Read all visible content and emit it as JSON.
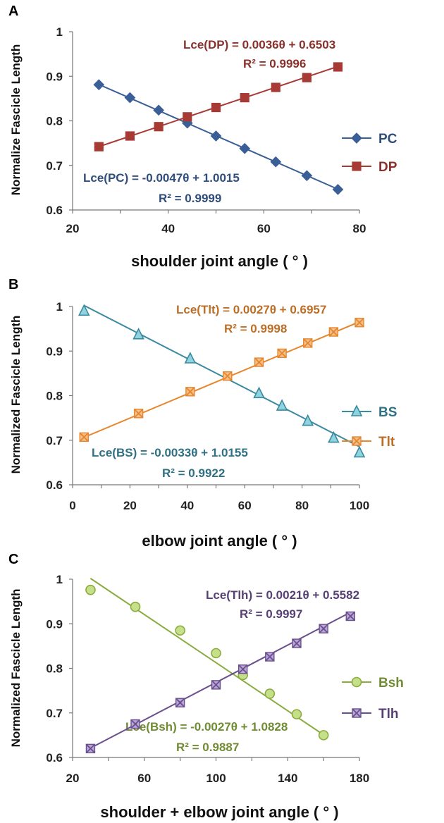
{
  "chart_data": [
    {
      "type": "scatter",
      "panel": "A",
      "xlabel": "shoulder joint angle ( ° )",
      "ylabel": "Normalize Fascicle Length",
      "xlim": [
        20,
        80
      ],
      "ylim": [
        0.6,
        1.0
      ],
      "xticks": [
        "20",
        "40",
        "60",
        "80"
      ],
      "yticks": [
        "0.6",
        "0.7",
        "0.8",
        "0.9",
        "1"
      ],
      "series": [
        {
          "name": "PC",
          "color": "#3a5f96",
          "marker": "diamond",
          "x": [
            25.5,
            32,
            38,
            44,
            50,
            56,
            62.5,
            69,
            75.5
          ],
          "y": [
            0.881,
            0.852,
            0.824,
            0.795,
            0.766,
            0.738,
            0.708,
            0.677,
            0.646
          ],
          "fit": {
            "slope": -0.0047,
            "intercept": 1.0015
          },
          "equation": "Lce(PC) = -0.0047θ + 1.0015",
          "r2": "R² = 0.9999"
        },
        {
          "name": "DP",
          "color": "#a83a35",
          "marker": "square",
          "x": [
            25.5,
            32,
            38,
            44,
            50,
            56,
            62.5,
            69,
            75.5
          ],
          "y": [
            0.742,
            0.766,
            0.787,
            0.809,
            0.83,
            0.852,
            0.875,
            0.897,
            0.921
          ],
          "fit": {
            "slope": 0.0036,
            "intercept": 0.6503
          },
          "equation": "Lce(DP) = 0.0036θ + 0.6503",
          "r2": "R² = 0.9996"
        }
      ]
    },
    {
      "type": "scatter",
      "panel": "B",
      "xlabel": "elbow joint angle ( ° )",
      "ylabel": "Normalized Fascicle Length",
      "xlim": [
        0,
        100
      ],
      "ylim": [
        0.6,
        1.0
      ],
      "xticks": [
        "0",
        "20",
        "40",
        "60",
        "80",
        "100"
      ],
      "yticks": [
        "0.6",
        "0.7",
        "0.8",
        "0.9",
        "1"
      ],
      "series": [
        {
          "name": "BS",
          "color": "#3a8aa0",
          "marker": "triangle",
          "x": [
            4,
            23,
            41,
            65,
            73,
            82,
            91,
            100
          ],
          "y": [
            0.99,
            0.937,
            0.883,
            0.805,
            0.777,
            0.743,
            0.705,
            0.672
          ],
          "fit": {
            "slope": -0.0033,
            "intercept": 1.0155
          },
          "equation": "Lce(BS) = -0.0033θ + 1.0155",
          "r2": "R² = 0.9922"
        },
        {
          "name": "Tlt",
          "color": "#e6862e",
          "marker": "cross-square",
          "x": [
            4,
            23,
            41,
            54,
            65,
            73,
            82,
            91,
            100
          ],
          "y": [
            0.707,
            0.76,
            0.809,
            0.844,
            0.875,
            0.895,
            0.918,
            0.943,
            0.964
          ],
          "fit": {
            "slope": 0.0027,
            "intercept": 0.6957
          },
          "equation": "Lce(Tlt) = 0.0027θ + 0.6957",
          "r2": "R² = 0.9998"
        }
      ]
    },
    {
      "type": "scatter",
      "panel": "C",
      "xlabel": "shoulder + elbow joint angle ( ° )",
      "ylabel": "Normalized Fascicle Length",
      "xlim": [
        20,
        180
      ],
      "ylim": [
        0.6,
        1.0
      ],
      "xticks": [
        "20",
        "60",
        "100",
        "140",
        "180"
      ],
      "yticks": [
        "0.6",
        "0.7",
        "0.8",
        "0.9",
        "1"
      ],
      "series": [
        {
          "name": "Bsh",
          "color": "#8aab3e",
          "marker": "circle",
          "x": [
            30,
            55,
            80,
            100,
            115,
            130,
            145,
            160
          ],
          "y": [
            0.976,
            0.938,
            0.885,
            0.834,
            0.785,
            0.743,
            0.697,
            0.65
          ],
          "fit": {
            "slope": -0.0027,
            "intercept": 1.0828
          },
          "equation": "Lce(Bsh) = -0.0027θ + 1.0828",
          "r2": "R² = 0.9887"
        },
        {
          "name": "Tlh",
          "color": "#6a4f8e",
          "marker": "cross-square",
          "x": [
            30,
            55,
            80,
            100,
            115,
            130,
            145,
            160,
            175
          ],
          "y": [
            0.62,
            0.675,
            0.723,
            0.763,
            0.798,
            0.826,
            0.856,
            0.889,
            0.917
          ],
          "fit": {
            "slope": 0.0021,
            "intercept": 0.5582
          },
          "equation": "Lce(Tlh) = 0.0021θ + 0.5582",
          "r2": "R² = 0.9997"
        }
      ]
    }
  ]
}
